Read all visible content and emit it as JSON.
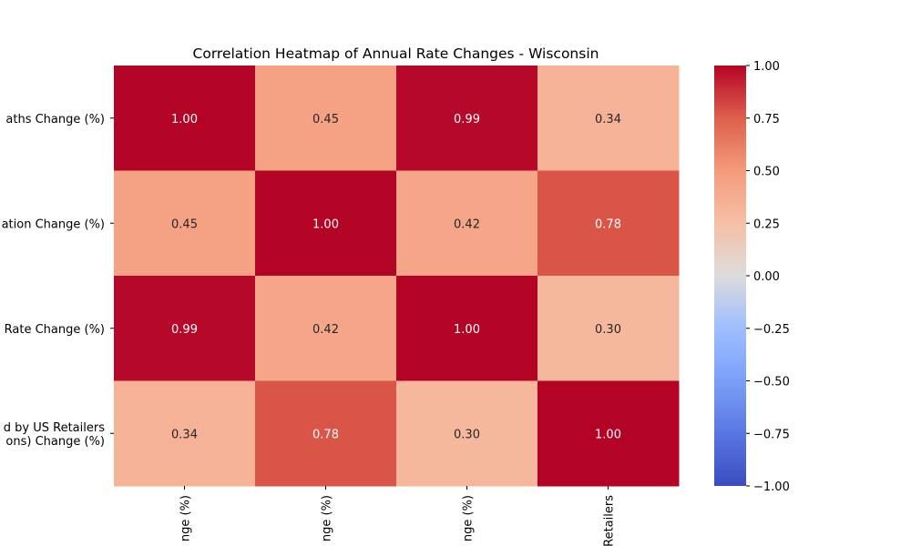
{
  "chart_data": {
    "type": "heatmap",
    "title": "Correlation Heatmap of Annual Rate Changes - Wisconsin",
    "row_labels": [
      [
        "aths Change (%)"
      ],
      [
        "ation Change (%)"
      ],
      [
        "Rate Change (%)"
      ],
      [
        "d by US Retailers",
        "ons) Change (%)"
      ]
    ],
    "col_labels": [
      "nge (%)",
      "nge (%)",
      "nge (%)",
      "Retailers"
    ],
    "values": [
      [
        1.0,
        0.45,
        0.99,
        0.34
      ],
      [
        0.45,
        1.0,
        0.42,
        0.78
      ],
      [
        0.99,
        0.42,
        1.0,
        0.3
      ],
      [
        0.34,
        0.78,
        0.3,
        1.0
      ]
    ],
    "value_format": "2dp",
    "colormap": "coolwarm",
    "vmin": -1.0,
    "vmax": 1.0,
    "colorbar_ticks": [
      "1.00",
      "0.75",
      "0.50",
      "0.25",
      "0.00",
      "−0.25",
      "−0.50",
      "−0.75",
      "−1.00"
    ],
    "colorbar_tick_values": [
      1.0,
      0.75,
      0.5,
      0.25,
      0.0,
      -0.25,
      -0.5,
      -0.75,
      -1.0
    ],
    "colors": {
      "min": "#3b4cc0",
      "mid": "#dddddd",
      "max": "#b40426"
    }
  }
}
